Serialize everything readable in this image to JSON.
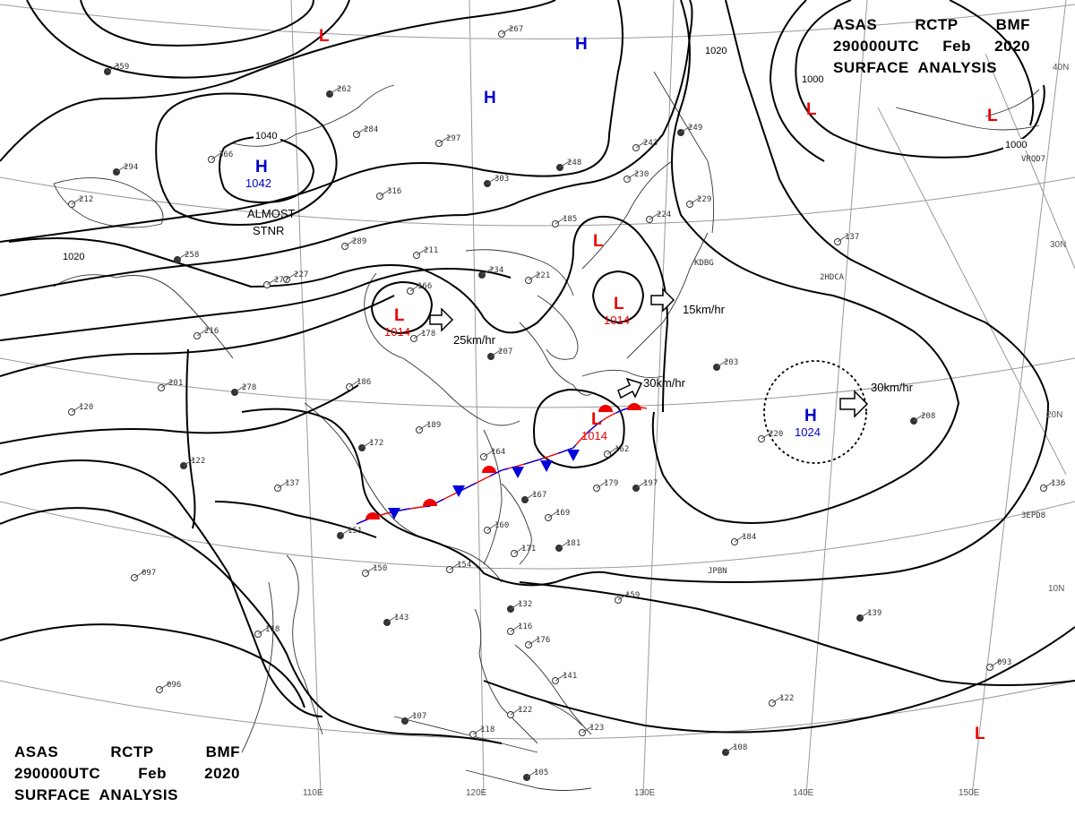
{
  "header_top": {
    "line1": [
      "ASAS",
      "RCTP",
      "BMF"
    ],
    "line2": [
      "290000UTC",
      "Feb",
      "2020"
    ],
    "line3": "SURFACE  ANALYSIS"
  },
  "header_bottom": {
    "line1": [
      "ASAS",
      "RCTP",
      "BMF"
    ],
    "line2": [
      "290000UTC",
      "Feb",
      "2020"
    ],
    "line3": "SURFACE  ANALYSIS"
  },
  "longitude_labels": [
    "110E",
    "120E",
    "130E",
    "140E",
    "150E"
  ],
  "latitude_labels": [
    "40N",
    "30N",
    "20N",
    "10N"
  ],
  "isobar_labels": [
    "1040",
    "1020",
    "1020",
    "1000",
    "1000"
  ],
  "pressure_centers": [
    {
      "letter": "H",
      "value": "1042",
      "color": "#0000cc"
    },
    {
      "letter": "H",
      "value": "",
      "color": "#0000cc"
    },
    {
      "letter": "H",
      "value": "",
      "color": "#0000cc"
    },
    {
      "letter": "H",
      "value": "1024",
      "color": "#0000cc"
    },
    {
      "letter": "L",
      "value": "1014",
      "color": "#ee0000"
    },
    {
      "letter": "L",
      "value": "1014",
      "color": "#ee0000"
    },
    {
      "letter": "L",
      "value": "1014",
      "color": "#ee0000"
    },
    {
      "letter": "L",
      "value": "",
      "color": "#ee0000"
    },
    {
      "letter": "L",
      "value": "",
      "color": "#ee0000"
    },
    {
      "letter": "L",
      "value": "",
      "color": "#ee0000"
    },
    {
      "letter": "L",
      "value": "",
      "color": "#ee0000"
    },
    {
      "letter": "L",
      "value": "",
      "color": "#ee0000"
    }
  ],
  "movements": [
    "25km/hr",
    "15km/hr",
    "30km/hr",
    "30km/hr"
  ],
  "annotations": {
    "almost": "ALMOST",
    "stnr": "STNR"
  },
  "station_codes": [
    "KDBG",
    "2HDCA",
    "JPBN",
    "3EPD8",
    "VRQD7"
  ],
  "station_values": [
    "359",
    "267",
    "227",
    "262",
    "284",
    "297",
    "303",
    "366",
    "316",
    "294",
    "289",
    "211",
    "234",
    "221",
    "166",
    "258",
    "277",
    "178",
    "207",
    "186",
    "189",
    "172",
    "164",
    "137",
    "151",
    "150",
    "154",
    "143",
    "118",
    "096",
    "107",
    "122",
    "118",
    "105",
    "123",
    "141",
    "132",
    "116",
    "160",
    "167",
    "169",
    "171",
    "181",
    "159",
    "179",
    "197",
    "162",
    "185",
    "248",
    "230",
    "243",
    "249",
    "224",
    "229",
    "203",
    "137",
    "220",
    "208",
    "184",
    "136",
    "139",
    "093",
    "122",
    "108",
    "097",
    "201",
    "278",
    "216",
    "120",
    "122",
    "212",
    "176"
  ],
  "colors": {
    "warm_front": "#ee0000",
    "cold_front": "#0000dd",
    "high": "#0000cc",
    "low": "#ee0000",
    "isobar": "#000000",
    "grid": "#999999",
    "coast": "#333333"
  }
}
